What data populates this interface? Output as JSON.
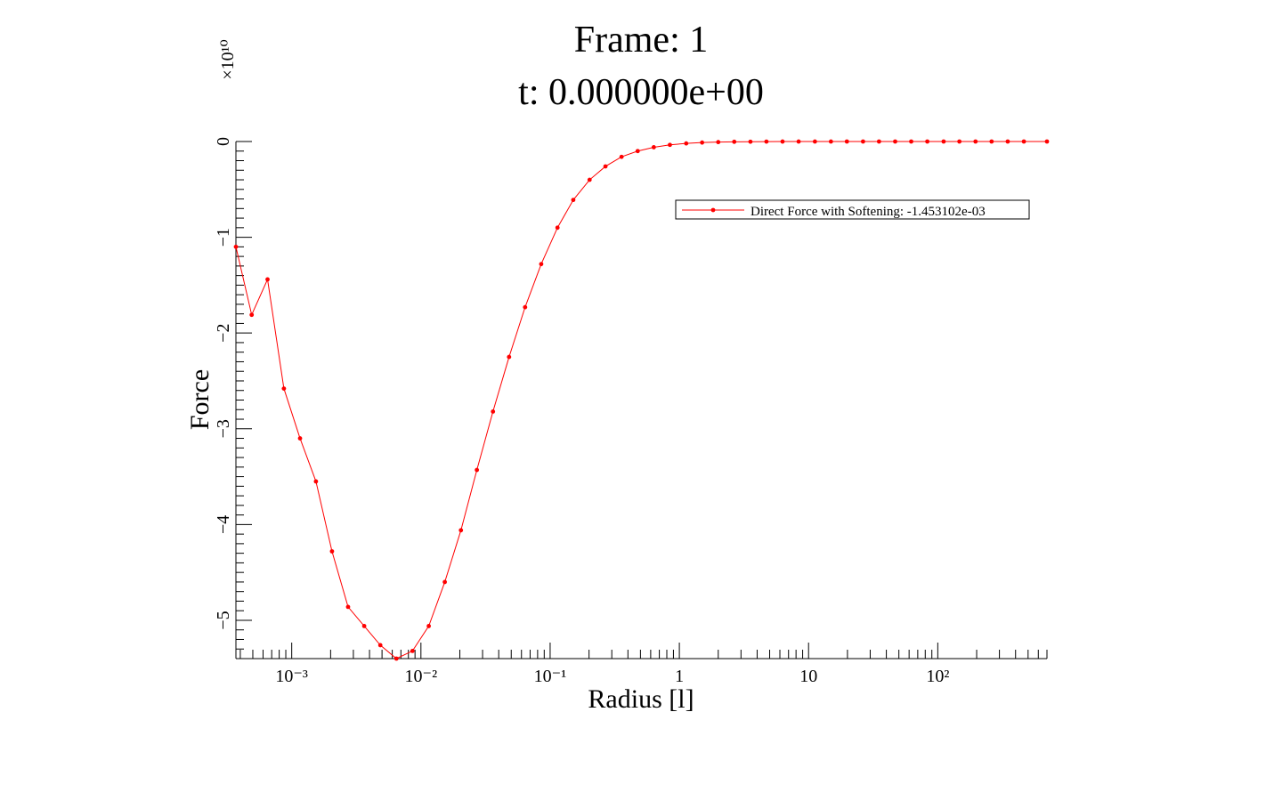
{
  "chart_data": {
    "type": "line",
    "title": "Frame: 1",
    "subtitle": "t: 0.000000e+00",
    "xlabel": "Radius [l]",
    "ylabel": "Force",
    "y_multiplier": "×10¹⁰",
    "xscale": "log",
    "xlim": [
      0.00037,
      700
    ],
    "ylim": [
      -5.4,
      0
    ],
    "xticks": [
      {
        "value": 0.001,
        "label": "10⁻³"
      },
      {
        "value": 0.01,
        "label": "10⁻²"
      },
      {
        "value": 0.1,
        "label": "10⁻¹"
      },
      {
        "value": 1,
        "label": "1"
      },
      {
        "value": 10,
        "label": "10"
      },
      {
        "value": 100,
        "label": "10²"
      }
    ],
    "yticks": [
      {
        "value": 0,
        "label": "0"
      },
      {
        "value": -1,
        "label": "−1"
      },
      {
        "value": -2,
        "label": "−2"
      },
      {
        "value": -3,
        "label": "−3"
      },
      {
        "value": -4,
        "label": "−4"
      },
      {
        "value": -5,
        "label": "−5"
      }
    ],
    "grid": false,
    "legend_position": "top-right",
    "series": [
      {
        "name": "Direct Force with Softening: -1.453102e-03",
        "color": "#ff0000",
        "x": [
          0.00037,
          0.00049,
          0.00065,
          0.00087,
          0.00116,
          0.00154,
          0.00205,
          0.00273,
          0.00364,
          0.00485,
          0.00646,
          0.0086,
          0.0115,
          0.0153,
          0.0204,
          0.0271,
          0.0361,
          0.0481,
          0.064,
          0.0853,
          0.114,
          0.151,
          0.202,
          0.268,
          0.357,
          0.476,
          0.634,
          0.845,
          1.13,
          1.5,
          2.0,
          2.66,
          3.55,
          4.72,
          6.29,
          8.38,
          11.2,
          14.9,
          19.8,
          26.4,
          35.1,
          46.8,
          62.3,
          83.0,
          111,
          147,
          196,
          261,
          348,
          464,
          700
        ],
        "y": [
          -1.1,
          -1.81,
          -1.44,
          -2.58,
          -3.1,
          -3.55,
          -4.28,
          -4.86,
          -5.06,
          -5.26,
          -5.4,
          -5.32,
          -5.06,
          -4.6,
          -4.06,
          -3.43,
          -2.82,
          -2.25,
          -1.73,
          -1.28,
          -0.9,
          -0.61,
          -0.4,
          -0.26,
          -0.16,
          -0.1,
          -0.06,
          -0.035,
          -0.02,
          -0.011,
          -0.006,
          -0.003,
          -0.002,
          -0.001,
          -0.0005,
          -0.0003,
          -0.0002,
          -0.0001,
          0,
          0,
          0,
          0,
          0,
          0,
          0,
          0,
          0,
          0,
          0,
          0,
          0
        ]
      }
    ]
  }
}
